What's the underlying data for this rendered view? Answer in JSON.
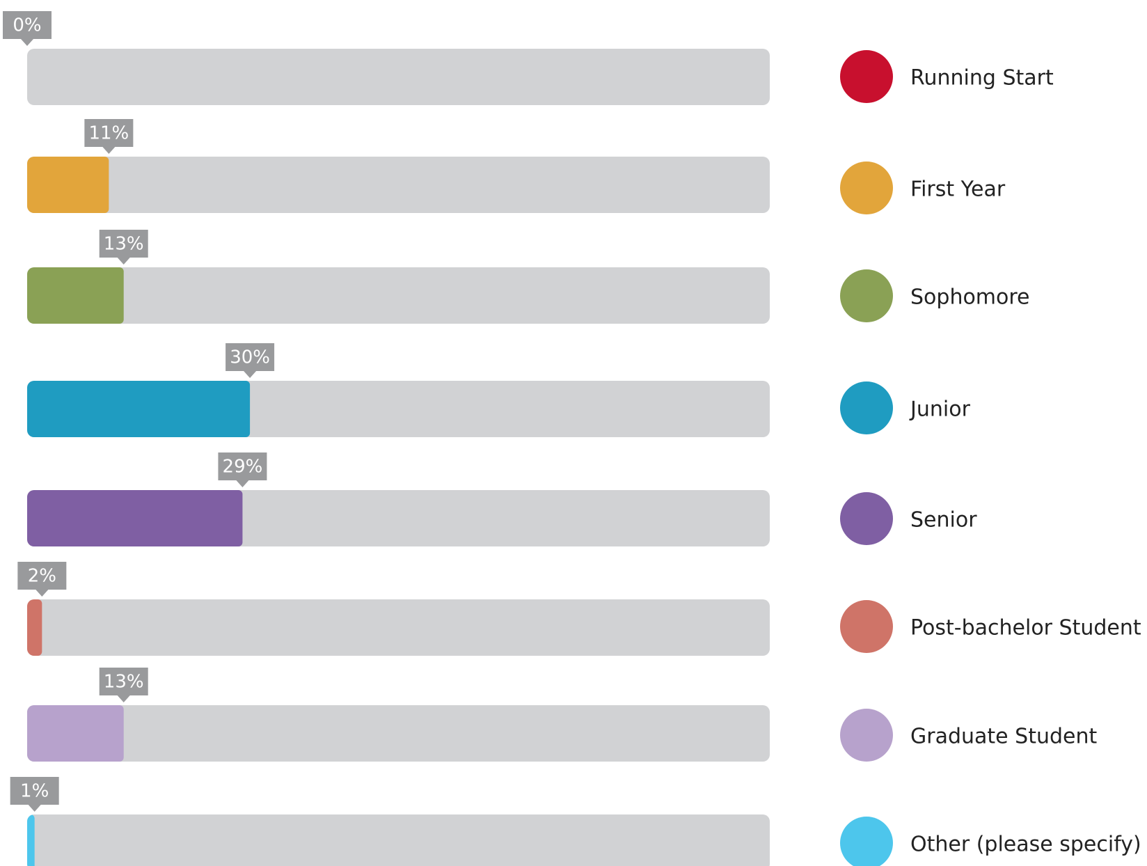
{
  "chart_data": {
    "type": "bar",
    "categories": [
      "Running Start",
      "First Year",
      "Sophomore",
      "Junior",
      "Senior",
      "Post-bachelor Student",
      "Graduate Student",
      "Other (please specify)"
    ],
    "values": [
      0,
      11,
      13,
      30,
      29,
      2,
      13,
      1
    ],
    "value_labels": [
      "0%",
      "11%",
      "13%",
      "30%",
      "29%",
      "2%",
      "13%",
      "1%"
    ],
    "colors": [
      "#c8102e",
      "#e2a53b",
      "#8aa155",
      "#1f9cc1",
      "#7f5fa3",
      "#cf7468",
      "#b7a2cc",
      "#4dc6ec"
    ],
    "xlim": [
      0,
      100
    ]
  }
}
